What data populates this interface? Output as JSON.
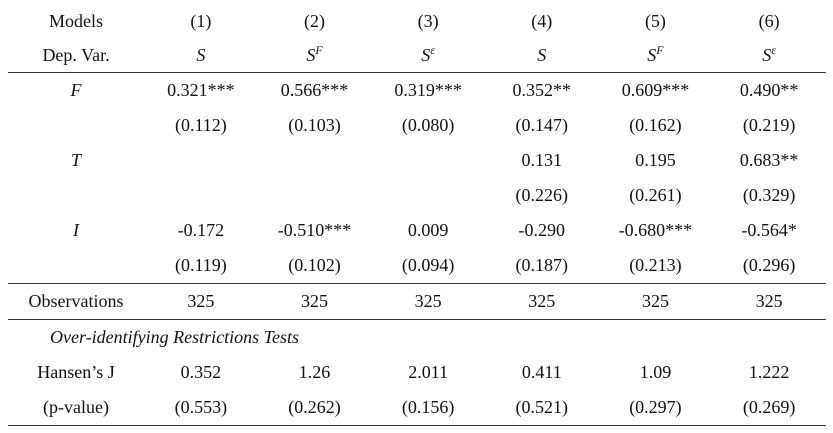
{
  "header": {
    "models_label": "Models",
    "depvar_label": "Dep. Var.",
    "models": [
      "(1)",
      "(2)",
      "(3)",
      "(4)",
      "(5)",
      "(6)"
    ],
    "depvars": [
      {
        "base": "S",
        "sup": ""
      },
      {
        "base": "S",
        "sup": "F"
      },
      {
        "base": "S",
        "sup": "ε"
      },
      {
        "base": "S",
        "sup": ""
      },
      {
        "base": "S",
        "sup": "F"
      },
      {
        "base": "S",
        "sup": "ε"
      }
    ]
  },
  "rows": [
    {
      "label": "F",
      "coef": [
        "0.321***",
        "0.566***",
        "0.319***",
        "0.352**",
        "0.609***",
        "0.490**"
      ],
      "se": [
        "(0.112)",
        "(0.103)",
        "(0.080)",
        "(0.147)",
        "(0.162)",
        "(0.219)"
      ]
    },
    {
      "label": "T",
      "coef": [
        "",
        "",
        "",
        "0.131",
        "0.195",
        "0.683**"
      ],
      "se": [
        "",
        "",
        "",
        "(0.226)",
        "(0.261)",
        "(0.329)"
      ]
    },
    {
      "label": "I",
      "coef": [
        "-0.172",
        "-0.510***",
        "0.009",
        "-0.290",
        "-0.680***",
        "-0.564*"
      ],
      "se": [
        "(0.119)",
        "(0.102)",
        "(0.094)",
        "(0.187)",
        "(0.213)",
        "(0.296)"
      ]
    }
  ],
  "observations": {
    "label": "Observations",
    "values": [
      "325",
      "325",
      "325",
      "325",
      "325",
      "325"
    ]
  },
  "tests": {
    "section_title": "Over-identifying Restrictions Tests",
    "hansen_label": "Hansen’s J",
    "hansen": [
      "0.352",
      "1.26",
      "2.011",
      "0.411",
      "1.09",
      "1.222"
    ],
    "pvalue_label": "(p-value)",
    "pvalues": [
      "(0.553)",
      "(0.262)",
      "(0.156)",
      "(0.521)",
      "(0.297)",
      "(0.269)"
    ]
  }
}
